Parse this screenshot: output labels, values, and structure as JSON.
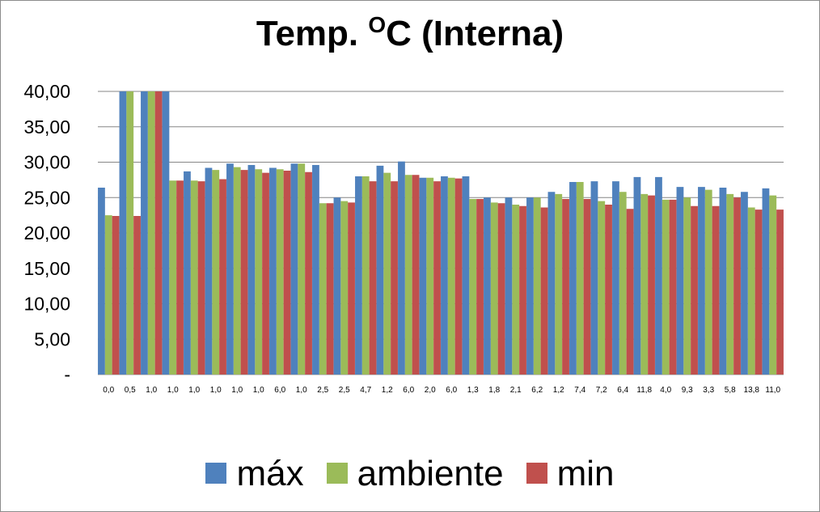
{
  "chart_data": {
    "type": "bar",
    "title_parts": {
      "prefix": "Temp.  ",
      "sup": "O",
      "suffix": "C  (Interna)"
    },
    "xlabel": "",
    "ylabel": "",
    "ylim": [
      0,
      40
    ],
    "yticks": [
      0,
      5,
      10,
      15,
      20,
      25,
      30,
      35,
      40
    ],
    "ytick_labels": [
      "-",
      "5,00",
      "10,00",
      "15,00",
      "20,00",
      "25,00",
      "30,00",
      "35,00",
      "40,00"
    ],
    "grid": true,
    "legend_position": "bottom",
    "categories": [
      "0,0",
      "0,5",
      "1,0",
      "1,0",
      "1,0",
      "1,0",
      "1,0",
      "1,0",
      "6,0",
      "1,0",
      "2,5",
      "2,5",
      "4,7",
      "1,2",
      "6,0",
      "2,0",
      "6,0",
      "1,3",
      "1,8",
      "2,1",
      "6,2",
      "1,2",
      "7,4",
      "7,2",
      "6,4",
      "11,8",
      "4,0",
      "9,3",
      "3,3",
      "5,8",
      "13,8",
      "11,0"
    ],
    "series": [
      {
        "name": "máx",
        "color": "#4f81bd",
        "values": [
          26.4,
          40,
          40,
          40,
          28.7,
          29.2,
          29.8,
          29.6,
          29.2,
          29.8,
          29.6,
          25.0,
          28.0,
          29.5,
          30.1,
          27.8,
          28.0,
          28.0,
          25.0,
          25.0,
          25.0,
          25.8,
          27.2,
          27.3,
          27.3,
          27.9,
          27.9,
          26.5,
          26.5,
          26.4,
          25.8,
          26.3
        ]
      },
      {
        "name": "ambiente",
        "color": "#9bbb59",
        "values": [
          22.5,
          40,
          40,
          27.4,
          27.4,
          28.9,
          29.3,
          29.0,
          29.0,
          29.8,
          24.2,
          24.5,
          28.0,
          28.5,
          28.2,
          27.8,
          27.8,
          24.8,
          24.3,
          24.0,
          25.0,
          25.5,
          27.2,
          24.5,
          25.8,
          25.5,
          24.7,
          25.0,
          26.1,
          25.5,
          23.6,
          25.3
        ]
      },
      {
        "name": "min",
        "color": "#c0504d",
        "values": [
          22.4,
          22.4,
          40,
          27.4,
          27.3,
          27.6,
          28.9,
          28.5,
          28.8,
          28.6,
          24.2,
          24.3,
          27.3,
          27.3,
          28.2,
          27.3,
          27.7,
          24.8,
          24.2,
          23.8,
          23.6,
          24.8,
          24.8,
          24.0,
          23.4,
          25.3,
          24.7,
          23.8,
          23.8,
          25.0,
          23.3,
          23.3
        ]
      }
    ]
  }
}
